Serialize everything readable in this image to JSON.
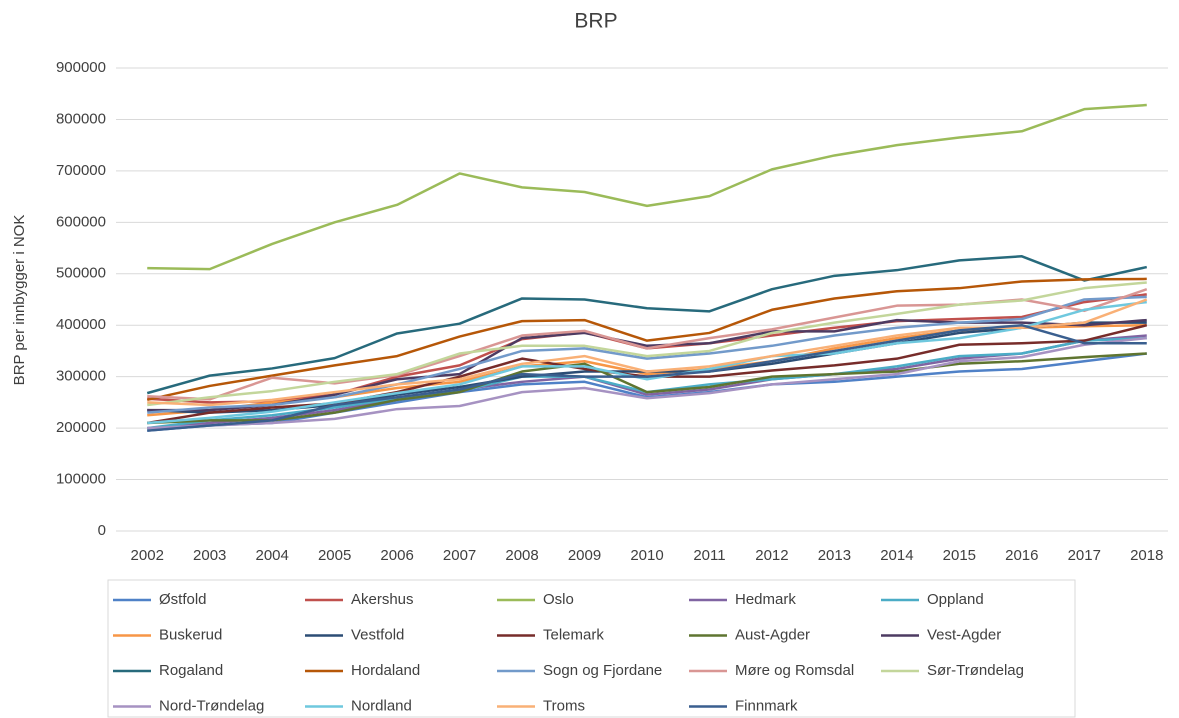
{
  "chart_data": {
    "type": "line",
    "title": "BRP",
    "y_label": "BRP per innbygger i NOK",
    "categories": [
      "2002",
      "2003",
      "2004",
      "2005",
      "2006",
      "2007",
      "2008",
      "2009",
      "2010",
      "2011",
      "2012",
      "2013",
      "2014",
      "2015",
      "2016",
      "2017",
      "2018"
    ],
    "ylim": [
      0,
      900000
    ],
    "yticks": [
      0,
      100000,
      200000,
      300000,
      400000,
      500000,
      600000,
      700000,
      800000,
      900000
    ],
    "grid": true,
    "series": [
      {
        "name": "Østfold",
        "color": "#4f81c7",
        "values": [
          195000,
          205000,
          210000,
          230000,
          250000,
          270000,
          285000,
          290000,
          260000,
          270000,
          285000,
          290000,
          300000,
          310000,
          315000,
          330000,
          345000
        ]
      },
      {
        "name": "Akershus",
        "color": "#c0504d",
        "values": [
          257000,
          250000,
          252000,
          265000,
          300000,
          322000,
          373000,
          386000,
          355000,
          365000,
          380000,
          395000,
          408000,
          412000,
          416000,
          445000,
          460000
        ]
      },
      {
        "name": "Oslo",
        "color": "#9bbb59",
        "values": [
          511000,
          509000,
          558000,
          600000,
          634000,
          695000,
          668000,
          659000,
          632000,
          651000,
          703000,
          730000,
          750000,
          765000,
          777000,
          820000,
          828000
        ]
      },
      {
        "name": "Hedmark",
        "color": "#8064a2",
        "values": [
          200000,
          210000,
          220000,
          235000,
          255000,
          275000,
          290000,
          300000,
          265000,
          275000,
          295000,
          305000,
          315000,
          335000,
          345000,
          370000,
          380000
        ]
      },
      {
        "name": "Oppland",
        "color": "#4bacc6",
        "values": [
          200000,
          215000,
          225000,
          240000,
          258000,
          272000,
          300000,
          300000,
          270000,
          285000,
          295000,
          305000,
          320000,
          340000,
          345000,
          370000,
          375000
        ]
      },
      {
        "name": "Buskerud",
        "color": "#f79646",
        "values": [
          225000,
          235000,
          250000,
          260000,
          278000,
          290000,
          320000,
          330000,
          305000,
          315000,
          330000,
          355000,
          375000,
          390000,
          395000,
          398000,
          400000
        ]
      },
      {
        "name": "Vestfold",
        "color": "#2c4d75",
        "values": [
          235000,
          230000,
          235000,
          245000,
          265000,
          280000,
          300000,
          310000,
          310000,
          310000,
          325000,
          345000,
          365000,
          385000,
          395000,
          405000,
          405000
        ]
      },
      {
        "name": "Telemark",
        "color": "#772c2a",
        "values": [
          210000,
          230000,
          240000,
          248000,
          270000,
          300000,
          335000,
          315000,
          300000,
          300000,
          312000,
          322000,
          335000,
          362000,
          365000,
          370000,
          400000
        ]
      },
      {
        "name": "Aust-Agder",
        "color": "#5f7530",
        "values": [
          210000,
          215000,
          215000,
          230000,
          255000,
          270000,
          310000,
          325000,
          270000,
          280000,
          300000,
          305000,
          310000,
          325000,
          330000,
          338000,
          345000
        ]
      },
      {
        "name": "Vest-Agder",
        "color": "#4d3b62",
        "values": [
          235000,
          235000,
          245000,
          265000,
          295000,
          305000,
          375000,
          385000,
          360000,
          365000,
          388000,
          388000,
          410000,
          405000,
          405000,
          400000,
          410000
        ]
      },
      {
        "name": "Rogaland",
        "color": "#276a7c",
        "values": [
          268000,
          302000,
          316000,
          336000,
          384000,
          403000,
          452000,
          450000,
          433000,
          427000,
          470000,
          496000,
          507000,
          526000,
          534000,
          487000,
          513000
        ]
      },
      {
        "name": "Hordaland",
        "color": "#b65708",
        "values": [
          255000,
          282000,
          302000,
          322000,
          340000,
          378000,
          408000,
          410000,
          370000,
          385000,
          430000,
          452000,
          466000,
          472000,
          485000,
          489000,
          490000
        ]
      },
      {
        "name": "Sogn og Fjordane",
        "color": "#729aca",
        "values": [
          230000,
          240000,
          245000,
          260000,
          285000,
          315000,
          350000,
          355000,
          335000,
          345000,
          360000,
          380000,
          395000,
          405000,
          412000,
          450000,
          455000
        ]
      },
      {
        "name": "Møre og Romsdal",
        "color": "#d99694",
        "values": [
          262000,
          256000,
          298000,
          287000,
          303000,
          340000,
          380000,
          389000,
          355000,
          375000,
          392000,
          415000,
          438000,
          440000,
          450000,
          428000,
          470000
        ]
      },
      {
        "name": "Sør-Trøndelag",
        "color": "#c3d69b",
        "values": [
          245000,
          260000,
          272000,
          290000,
          305000,
          345000,
          360000,
          360000,
          340000,
          350000,
          385000,
          405000,
          422000,
          440000,
          448000,
          472000,
          483000
        ]
      },
      {
        "name": "Nord-Trøndelag",
        "color": "#a692c2",
        "values": [
          200000,
          205000,
          210000,
          218000,
          237000,
          243000,
          270000,
          278000,
          258000,
          268000,
          285000,
          295000,
          305000,
          330000,
          338000,
          362000,
          375000
        ]
      },
      {
        "name": "Nordland",
        "color": "#6fc8de",
        "values": [
          210000,
          220000,
          232000,
          250000,
          268000,
          285000,
          320000,
          320000,
          295000,
          315000,
          340000,
          345000,
          365000,
          375000,
          395000,
          430000,
          445000
        ]
      },
      {
        "name": "Troms",
        "color": "#f9b076",
        "values": [
          250000,
          245000,
          255000,
          270000,
          285000,
          295000,
          325000,
          340000,
          310000,
          320000,
          340000,
          360000,
          380000,
          395000,
          395000,
          405000,
          450000
        ]
      },
      {
        "name": "Finnmark",
        "color": "#3a5f8f",
        "values": [
          195000,
          205000,
          215000,
          245000,
          260000,
          275000,
          305000,
          300000,
          300000,
          310000,
          330000,
          350000,
          370000,
          390000,
          400000,
          365000,
          365000
        ]
      }
    ]
  }
}
